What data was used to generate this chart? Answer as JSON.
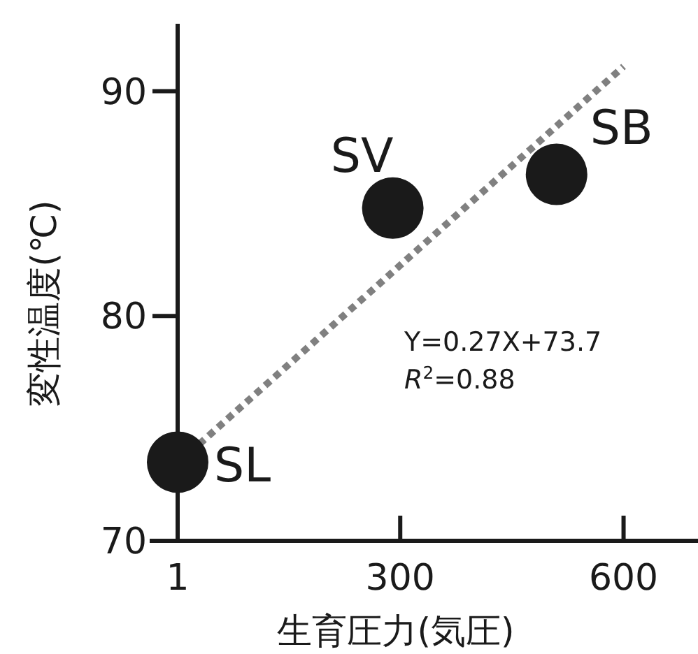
{
  "chart_data": {
    "type": "scatter",
    "xlabel": "生育圧力(気圧)",
    "ylabel": "変性温度(℃)",
    "xlim": [
      1,
      700
    ],
    "ylim": [
      70,
      93
    ],
    "xticks": [
      1,
      300,
      600
    ],
    "yticks": [
      70,
      80,
      90
    ],
    "marker": "circle",
    "series": [
      {
        "name": "SL",
        "color": "#1a1a1a",
        "x": [
          1
        ],
        "values": [
          73.5
        ]
      },
      {
        "name": "SV",
        "color": "#1a1a1a",
        "x": [
          290
        ],
        "values": [
          84.8
        ]
      },
      {
        "name": "SB",
        "color": "#1a1a1a",
        "x": [
          510
        ],
        "values": [
          86.3
        ]
      },
      {
        "type": "line",
        "color": "#808080",
        "line_style": "dotted",
        "marker": "none",
        "x": [
          30,
          600
        ],
        "values": [
          74.3,
          91.1
        ]
      }
    ],
    "annotations": [
      "Y=0.27X+73.7",
      "*R*$^{2}$=0.88"
    ]
  }
}
